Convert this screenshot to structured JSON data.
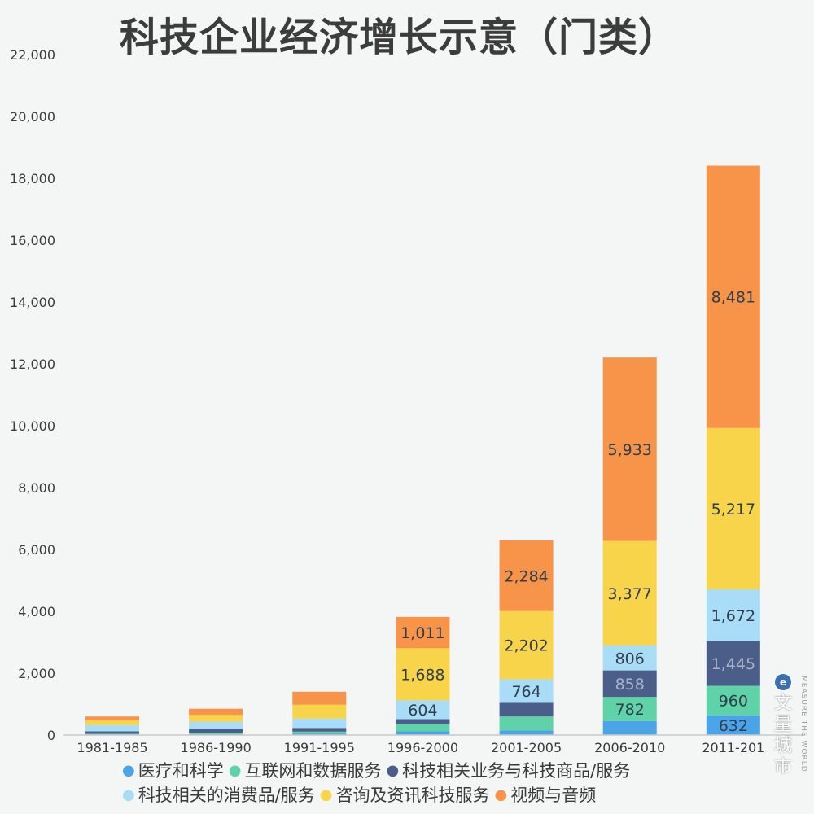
{
  "chart_data": {
    "type": "bar",
    "stacked": true,
    "title": "科技企业经济增长示意（门类）",
    "xlabel": "",
    "ylabel": "",
    "ylim": [
      0,
      22000
    ],
    "yticks": [
      "0",
      "2,000",
      "4,000",
      "6,000",
      "8,000",
      "10,000",
      "12,000",
      "14,000",
      "16,000",
      "18,000",
      "20,000",
      "22,000"
    ],
    "categories": [
      "1981-1985",
      "1986-1990",
      "1991-1995",
      "1996-2000",
      "2001-2005",
      "2006-2010",
      "2011-201"
    ],
    "series": [
      {
        "name": "医疗和科学",
        "color": "#4ba3e8",
        "values": [
          20,
          30,
          50,
          120,
          150,
          450,
          632
        ],
        "labels": [
          "",
          "",
          "",
          "",
          "",
          "",
          "632"
        ],
        "label_color": "#2f3d4c"
      },
      {
        "name": "互联网和数据服务",
        "color": "#5fd3a7",
        "values": [
          20,
          40,
          60,
          230,
          450,
          782,
          960
        ],
        "labels": [
          "",
          "",
          "",
          "",
          "",
          "782",
          "960"
        ],
        "label_color": "#2f3d4c"
      },
      {
        "name": "科技相关业务与科技商品/服务",
        "color": "#4b5d89",
        "values": [
          80,
          120,
          120,
          166,
          440,
          858,
          1445
        ],
        "labels": [
          "",
          "",
          "",
          "",
          "",
          "858",
          "1,445"
        ],
        "label_color": "#a9b3c9"
      },
      {
        "name": "科技相关的消费品/服务",
        "color": "#a9dcf7",
        "values": [
          200,
          240,
          300,
          604,
          764,
          806,
          1672
        ],
        "labels": [
          "",
          "",
          "",
          "604",
          "764",
          "806",
          "1,672"
        ],
        "label_color": "#2f3d4c"
      },
      {
        "name": "咨询及资讯科技服务",
        "color": "#f7d44a",
        "values": [
          150,
          220,
          450,
          1688,
          2202,
          3377,
          5217
        ],
        "labels": [
          "",
          "",
          "",
          "1,688",
          "2,202",
          "3,377",
          "5,217"
        ],
        "label_color": "#2f3d4c"
      },
      {
        "name": "视频与音频",
        "color": "#f7944a",
        "values": [
          130,
          200,
          420,
          1011,
          2284,
          5933,
          8481
        ],
        "labels": [
          "",
          "",
          "",
          "1,011",
          "2,284",
          "5,933",
          "8,481"
        ],
        "label_color": "#2f3d4c"
      }
    ],
    "legend_position": "bottom"
  },
  "watermark": {
    "logo_glyph": "e",
    "name": "文量城市",
    "subtitle": "MEASURE THE WORLD"
  }
}
